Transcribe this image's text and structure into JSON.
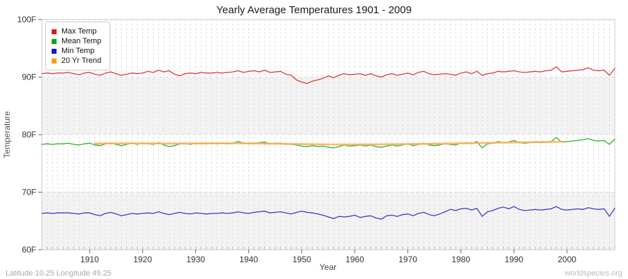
{
  "header": {
    "title": "Yearly Average Temperatures 1901 - 2009"
  },
  "footer": {
    "left": "Latitude 10.25 Longitude 49.25",
    "right": "worldspecies.org"
  },
  "legend": {
    "items": [
      {
        "label": "Max Temp",
        "swatch_color": "#ee1111"
      },
      {
        "label": "Mean Temp",
        "swatch_color": "#00aa00"
      },
      {
        "label": "Min Temp",
        "swatch_color": "#1111ee"
      },
      {
        "label": "20 Yr Trend",
        "swatch_color": "#ff9900"
      }
    ]
  },
  "colors": {
    "plot_border": "#c8c8c8",
    "band_gray": "#f3f3f3",
    "band_white": "#ffffff",
    "vgrid": "#dcdcdc",
    "hgrid": "#d8d8d8",
    "tick": "#666666",
    "minor_tick": "#aaaaaa",
    "tick_label": "#333333"
  },
  "chart_data": {
    "type": "line",
    "title": "Yearly Average Temperatures 1901 - 2009",
    "xlabel": "Year",
    "ylabel": "Temperature",
    "xlim": [
      1901,
      2009
    ],
    "ylim": [
      60,
      100
    ],
    "y_tick_step": 10,
    "y_tick_suffix": "F",
    "x_major_ticks": [
      1910,
      1920,
      1930,
      1940,
      1950,
      1960,
      1970,
      1980,
      1990,
      2000
    ],
    "grid": {
      "vertical_minor_every_year": true,
      "horizontal_major": true,
      "alternating_bands": true
    },
    "legend_position": "top-left",
    "series": [
      {
        "name": "Max Temp",
        "color": "#e53434",
        "width": 1.3,
        "opacity": 1,
        "start_year": 1901,
        "values": [
          90.6,
          90.7,
          90.6,
          90.7,
          90.7,
          90.8,
          90.6,
          90.4,
          90.7,
          90.8,
          90.5,
          90.3,
          90.7,
          90.9,
          90.6,
          90.3,
          90.5,
          90.7,
          90.6,
          90.7,
          91.0,
          90.8,
          91.2,
          90.9,
          91.1,
          90.5,
          90.2,
          90.6,
          90.7,
          90.6,
          90.8,
          90.7,
          90.7,
          90.8,
          90.7,
          90.8,
          90.9,
          91.1,
          90.8,
          91.0,
          91.1,
          90.9,
          91.2,
          90.8,
          90.9,
          91.0,
          90.5,
          90.3,
          89.5,
          89.1,
          88.9,
          89.3,
          89.5,
          89.8,
          90.2,
          89.9,
          90.3,
          90.6,
          90.4,
          90.5,
          90.6,
          90.3,
          90.6,
          90.2,
          90.0,
          90.4,
          90.6,
          90.3,
          90.5,
          90.7,
          90.4,
          90.8,
          91.0,
          90.6,
          90.4,
          90.5,
          90.6,
          90.5,
          90.3,
          90.7,
          90.9,
          90.6,
          91.0,
          90.3,
          90.6,
          90.7,
          91.0,
          90.9,
          91.0,
          91.1,
          90.9,
          90.8,
          90.9,
          91.0,
          90.9,
          91.1,
          91.2,
          91.8,
          90.9,
          91.0,
          91.1,
          91.2,
          91.3,
          91.6,
          91.2,
          91.1,
          91.2,
          90.3,
          91.5
        ]
      },
      {
        "name": "Mean Temp",
        "color": "#2eb22e",
        "width": 1.3,
        "opacity": 1,
        "start_year": 1901,
        "values": [
          78.3,
          78.4,
          78.3,
          78.4,
          78.4,
          78.5,
          78.3,
          78.2,
          78.4,
          78.5,
          78.2,
          78.1,
          78.4,
          78.5,
          78.3,
          78.1,
          78.3,
          78.5,
          78.3,
          78.5,
          78.4,
          78.3,
          78.6,
          78.2,
          77.9,
          78.1,
          78.4,
          78.4,
          78.3,
          78.5,
          78.4,
          78.4,
          78.5,
          78.4,
          78.5,
          78.4,
          78.5,
          78.8,
          78.5,
          78.4,
          78.5,
          78.6,
          78.7,
          78.4,
          78.5,
          78.5,
          78.4,
          78.3,
          78.2,
          78.0,
          77.9,
          78.1,
          77.9,
          78.0,
          77.8,
          77.7,
          77.9,
          78.2,
          78.0,
          78.1,
          78.2,
          78.0,
          78.2,
          77.9,
          77.8,
          78.0,
          78.2,
          78.0,
          78.2,
          78.4,
          78.1,
          78.3,
          78.5,
          78.2,
          78.1,
          78.2,
          78.4,
          78.3,
          78.2,
          78.5,
          78.6,
          78.4,
          78.8,
          77.7,
          78.4,
          78.5,
          78.8,
          78.6,
          78.7,
          79.0,
          78.6,
          78.5,
          78.6,
          78.7,
          78.6,
          78.7,
          78.8,
          79.5,
          78.7,
          78.8,
          78.9,
          79.0,
          79.1,
          79.3,
          79.0,
          78.9,
          79.0,
          78.3,
          79.2
        ]
      },
      {
        "name": "Min Temp",
        "color": "#3c3ccd",
        "width": 1.3,
        "opacity": 1,
        "start_year": 1901,
        "values": [
          66.3,
          66.4,
          66.3,
          66.4,
          66.4,
          66.4,
          66.3,
          66.2,
          66.4,
          66.4,
          66.1,
          65.9,
          66.3,
          66.5,
          66.2,
          65.9,
          66.1,
          66.3,
          66.2,
          66.3,
          66.4,
          66.3,
          66.6,
          66.3,
          66.1,
          66.3,
          66.5,
          66.3,
          66.2,
          66.4,
          66.3,
          66.2,
          66.3,
          66.3,
          66.4,
          66.3,
          66.4,
          66.6,
          66.4,
          66.3,
          66.5,
          66.6,
          66.7,
          66.4,
          66.5,
          66.6,
          66.4,
          66.2,
          66.5,
          66.7,
          66.5,
          66.4,
          66.2,
          66.0,
          65.7,
          65.4,
          65.8,
          65.7,
          65.8,
          66.0,
          65.6,
          65.8,
          65.9,
          65.5,
          65.3,
          65.9,
          66.0,
          65.8,
          66.1,
          66.2,
          65.9,
          66.3,
          66.5,
          66.1,
          65.9,
          66.2,
          66.6,
          67.0,
          66.8,
          67.1,
          67.2,
          66.9,
          67.2,
          65.8,
          66.6,
          66.8,
          67.2,
          67.4,
          67.1,
          67.5,
          67.0,
          66.8,
          66.9,
          67.0,
          66.9,
          67.0,
          67.1,
          67.5,
          67.0,
          66.9,
          67.0,
          67.1,
          67.0,
          67.3,
          67.1,
          67.0,
          67.1,
          65.8,
          67.2
        ]
      },
      {
        "name": "20 Yr Trend",
        "color": "#ffae4f",
        "width": 2.6,
        "opacity": 0.88,
        "start_year": 1911,
        "values": [
          78.45,
          78.45,
          78.46,
          78.46,
          78.46,
          78.47,
          78.47,
          78.47,
          78.46,
          78.46,
          78.46,
          78.46,
          78.46,
          78.45,
          78.45,
          78.45,
          78.45,
          78.45,
          78.46,
          78.46,
          78.47,
          78.47,
          78.48,
          78.48,
          78.49,
          78.49,
          78.49,
          78.48,
          78.48,
          78.47,
          78.46,
          78.45,
          78.44,
          78.42,
          78.41,
          78.4,
          78.38,
          78.37,
          78.36,
          78.35,
          78.34,
          78.33,
          78.32,
          78.31,
          78.3,
          78.3,
          78.29,
          78.29,
          78.3,
          78.3,
          78.3,
          78.31,
          78.31,
          78.32,
          78.32,
          78.33,
          78.33,
          78.34,
          78.35,
          78.36,
          78.37,
          78.38,
          78.39,
          78.4,
          78.41,
          78.43,
          78.44,
          78.46,
          78.47,
          78.49,
          78.5,
          78.52,
          78.53,
          78.55,
          78.56,
          78.58,
          78.59,
          78.61,
          78.62,
          78.64,
          78.65,
          78.67,
          78.68,
          78.7,
          78.71,
          78.73,
          78.74,
          78.76,
          78.77
        ]
      }
    ]
  }
}
